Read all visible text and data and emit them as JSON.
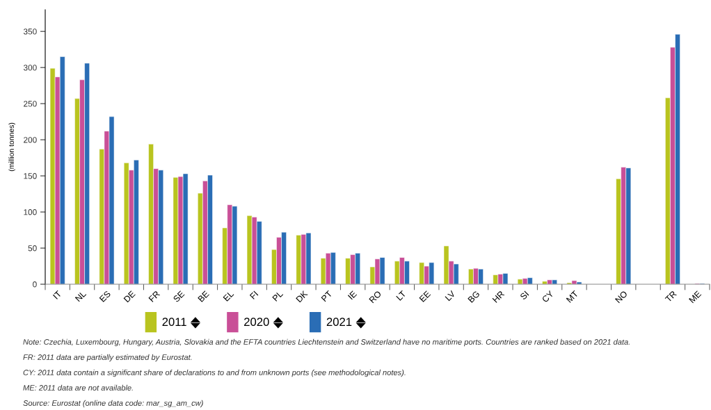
{
  "chart_data": {
    "type": "bar",
    "ylabel": "(million tonnes)",
    "categories": [
      "IT",
      "NL",
      "ES",
      "DE",
      "FR",
      "SE",
      "BE",
      "EL",
      "FI",
      "PL",
      "DK",
      "PT",
      "IE",
      "RO",
      "LT",
      "EE",
      "LV",
      "BG",
      "HR",
      "SI",
      "CY",
      "MT",
      null,
      "NO",
      null,
      "TR",
      "ME"
    ],
    "series": [
      {
        "name": "2011",
        "color": "#b9c41f",
        "values": [
          299,
          257,
          187,
          168,
          194,
          148,
          126,
          78,
          95,
          48,
          68,
          36,
          36,
          24,
          32,
          30,
          53,
          21,
          13,
          7,
          4,
          2,
          null,
          146,
          null,
          258,
          null
        ]
      },
      {
        "name": "2020",
        "color": "#c94f97",
        "values": [
          287,
          283,
          212,
          158,
          160,
          149,
          143,
          110,
          93,
          65,
          69,
          43,
          41,
          35,
          37,
          25,
          32,
          22,
          14,
          8,
          6,
          5,
          null,
          162,
          null,
          328,
          1
        ]
      },
      {
        "name": "2021",
        "color": "#2a6db5",
        "values": [
          315,
          306,
          232,
          172,
          158,
          153,
          151,
          108,
          87,
          72,
          71,
          44,
          43,
          37,
          32,
          30,
          28,
          21,
          15,
          9,
          6,
          3,
          null,
          161,
          null,
          346,
          1
        ]
      }
    ],
    "ylim": [
      0,
      380
    ],
    "yticks": [
      0,
      50,
      100,
      150,
      200,
      250,
      300,
      350
    ],
    "grid": false,
    "legend": "bottom",
    "annotations": [
      "Note: Czechia, Luxembourg, Hungary, Austria, Slovakia and the EFTA countries Liechtenstein and Switzerland have no maritime ports. Countries are ranked based on 2021 data.",
      "FR: 2011 data are partially estimated by Eurostat.",
      "CY: 2011 data contain a significant share of declarations to and from unknown ports (see methodological notes).",
      "ME: 2011 data are not available.",
      "Source: Eurostat (online data code: mar_sg_am_cw)"
    ]
  }
}
